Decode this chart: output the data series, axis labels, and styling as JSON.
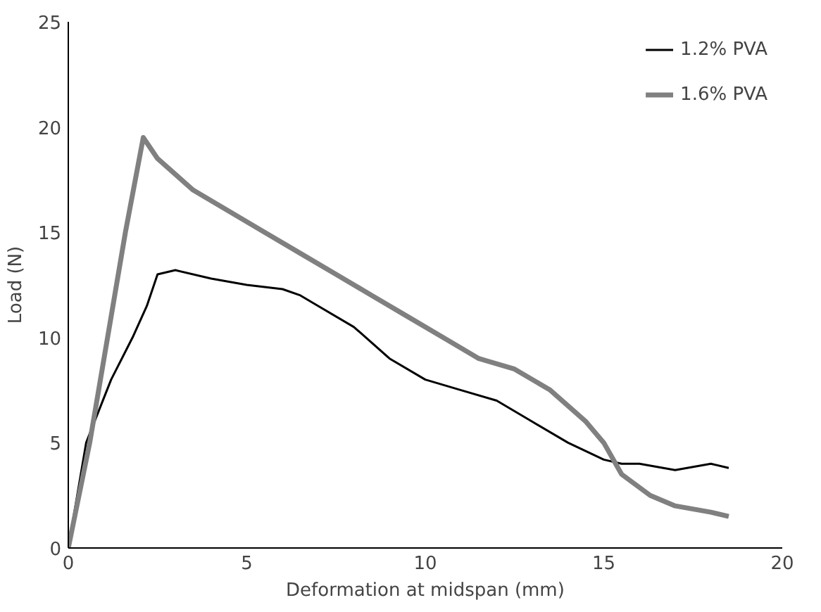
{
  "chart_data": {
    "type": "line",
    "xlabel": "Deformation at midspan (mm)",
    "ylabel": "Load (N)",
    "xlim": [
      0,
      20
    ],
    "ylim": [
      0,
      25
    ],
    "xticks": [
      0,
      5,
      10,
      15,
      20
    ],
    "yticks": [
      0,
      5,
      10,
      15,
      20,
      25
    ],
    "grid": false,
    "legend": "top right",
    "marker": "none",
    "line_style": "solid",
    "series": [
      {
        "name": "1.2% PVA",
        "color": "#000000",
        "x": [
          0,
          0.5,
          1.2,
          1.8,
          2.2,
          2.5,
          3,
          4,
          5,
          6,
          6.5,
          7,
          8,
          9,
          10,
          11,
          12,
          13,
          14,
          15,
          15.5,
          16,
          17,
          18,
          18.5
        ],
        "values": [
          0,
          5,
          8,
          10,
          11.5,
          13,
          13.2,
          12.8,
          12.5,
          12.3,
          12,
          11.5,
          10.5,
          9,
          8,
          7.5,
          7,
          6,
          5,
          4.2,
          4,
          4,
          3.7,
          4,
          3.8
        ]
      },
      {
        "name": "1.6% PVA",
        "color": "#808080",
        "x": [
          0,
          0.6,
          1.1,
          1.6,
          2.1,
          2.5,
          3.5,
          4.5,
          5.5,
          6.5,
          7.5,
          8.5,
          9.5,
          10.5,
          11.5,
          12.5,
          13.5,
          14.5,
          15,
          15.5,
          16.3,
          17,
          18,
          18.5
        ],
        "values": [
          0,
          5,
          10,
          15,
          19.5,
          18.5,
          17,
          16,
          15,
          14,
          13,
          12,
          11,
          10,
          9,
          8.5,
          7.5,
          6,
          5,
          3.5,
          2.5,
          2,
          1.7,
          1.5
        ]
      }
    ]
  }
}
